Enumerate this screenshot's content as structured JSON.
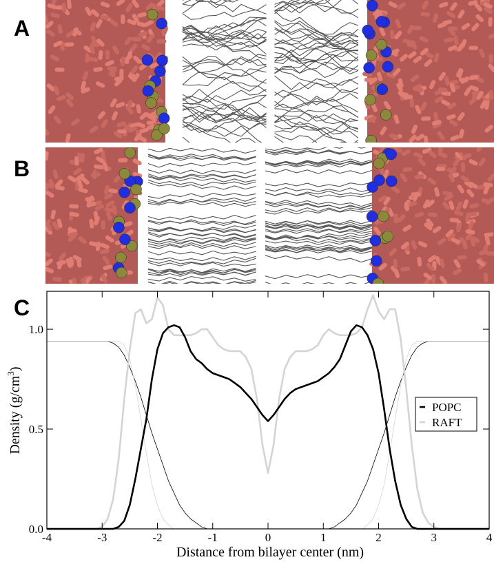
{
  "panels": {
    "a": "A",
    "b": "B"
  },
  "chart_data": {
    "type": "line",
    "panel_label": "C",
    "xlabel": "Distance from bilayer center (nm)",
    "ylabel": {
      "main": "Density (g/cm",
      "sup": "3",
      "end": ")"
    },
    "xlim": [
      -4,
      4
    ],
    "xticks": [
      -4,
      -3,
      -2,
      -1,
      0,
      1,
      2,
      3,
      4
    ],
    "ylim": [
      0,
      1.19
    ],
    "yticks": [
      {
        "value": 0,
        "label": "0.0"
      },
      {
        "value": 0.5,
        "label": "0.5"
      },
      {
        "value": 1,
        "label": "1.0"
      }
    ],
    "legend": "right",
    "x": [
      -4,
      -3.9,
      -3.8,
      -3.7,
      -3.6,
      -3.5,
      -3.4,
      -3.3,
      -3.2,
      -3.1,
      -3,
      -2.9,
      -2.8,
      -2.7,
      -2.6,
      -2.5,
      -2.4,
      -2.3,
      -2.2,
      -2.1,
      -2,
      -1.9,
      -1.8,
      -1.7,
      -1.6,
      -1.5,
      -1.4,
      -1.3,
      -1.2,
      -1.1,
      -1,
      -0.9,
      -0.8,
      -0.7,
      -0.6,
      -0.5,
      -0.4,
      -0.3,
      -0.2,
      -0.1,
      0,
      0.1,
      0.2,
      0.3,
      0.4,
      0.5,
      0.6,
      0.7,
      0.8,
      0.9,
      1,
      1.1,
      1.2,
      1.3,
      1.4,
      1.5,
      1.6,
      1.7,
      1.8,
      1.9,
      2,
      2.1,
      2.2,
      2.3,
      2.4,
      2.5,
      2.6,
      2.7,
      2.8,
      2.9,
      3,
      3.1,
      3.2,
      3.3,
      3.4,
      3.5,
      3.6,
      3.7,
      3.8,
      3.9,
      4
    ],
    "series": [
      {
        "name": "POPC",
        "color": "#000000",
        "line_width": 2.6,
        "values": [
          0,
          0,
          0,
          0,
          0,
          0,
          0,
          0,
          0,
          0,
          0,
          0,
          0,
          0.01,
          0.04,
          0.12,
          0.25,
          0.4,
          0.55,
          0.75,
          0.9,
          0.98,
          1.01,
          1.02,
          1.01,
          0.96,
          0.89,
          0.85,
          0.83,
          0.8,
          0.78,
          0.77,
          0.76,
          0.75,
          0.73,
          0.71,
          0.68,
          0.65,
          0.61,
          0.57,
          0.54,
          0.57,
          0.61,
          0.65,
          0.68,
          0.7,
          0.71,
          0.72,
          0.73,
          0.74,
          0.76,
          0.78,
          0.81,
          0.85,
          0.92,
          0.99,
          1.02,
          1.01,
          0.97,
          0.9,
          0.78,
          0.6,
          0.4,
          0.24,
          0.12,
          0.05,
          0.01,
          0,
          0,
          0,
          0,
          0,
          0,
          0,
          0,
          0,
          0,
          0,
          0,
          0,
          0
        ]
      },
      {
        "name": "RAFT",
        "color": "#d4d4d4",
        "line_width": 2.6,
        "values": [
          0,
          0,
          0,
          0,
          0,
          0,
          0,
          0,
          0,
          0,
          0.01,
          0.05,
          0.15,
          0.35,
          0.65,
          0.9,
          1.08,
          1.1,
          1.03,
          1.05,
          1.16,
          1.12,
          1.0,
          0.97,
          0.97,
          0.97,
          0.97,
          0.98,
          1.0,
          1.0,
          0.96,
          0.92,
          0.9,
          0.89,
          0.89,
          0.89,
          0.86,
          0.8,
          0.65,
          0.42,
          0.28,
          0.42,
          0.65,
          0.8,
          0.86,
          0.89,
          0.89,
          0.89,
          0.9,
          0.92,
          0.97,
          1.0,
          0.98,
          0.97,
          0.97,
          0.97,
          0.98,
          1.01,
          1.1,
          1.17,
          1.09,
          1.05,
          1.1,
          1.1,
          0.95,
          0.7,
          0.42,
          0.2,
          0.08,
          0.03,
          0.01,
          0,
          0,
          0,
          0,
          0,
          0,
          0,
          0,
          0,
          0
        ]
      },
      {
        "color": "#000000",
        "line_width": 0.8,
        "values": [
          0.94,
          0.94,
          0.94,
          0.94,
          0.94,
          0.94,
          0.94,
          0.94,
          0.94,
          0.94,
          0.94,
          0.94,
          0.93,
          0.91,
          0.87,
          0.81,
          0.74,
          0.66,
          0.57,
          0.48,
          0.4,
          0.32,
          0.24,
          0.18,
          0.12,
          0.08,
          0.05,
          0.03,
          0.01,
          0,
          0,
          0,
          0,
          0,
          0,
          0,
          0,
          0,
          0,
          0,
          0,
          0,
          0,
          0,
          0,
          0,
          0,
          0,
          0,
          0,
          0,
          0,
          0.01,
          0.03,
          0.05,
          0.08,
          0.12,
          0.18,
          0.24,
          0.32,
          0.4,
          0.48,
          0.57,
          0.66,
          0.74,
          0.81,
          0.87,
          0.91,
          0.93,
          0.94,
          0.94,
          0.94,
          0.94,
          0.94,
          0.94,
          0.94,
          0.94,
          0.94,
          0.94,
          0.94,
          0.94
        ]
      },
      {
        "color": "#d4d4d4",
        "line_width": 0.8,
        "values": [
          0.94,
          0.94,
          0.94,
          0.94,
          0.94,
          0.94,
          0.94,
          0.94,
          0.94,
          0.94,
          0.94,
          0.94,
          0.94,
          0.94,
          0.92,
          0.85,
          0.72,
          0.55,
          0.38,
          0.22,
          0.12,
          0.05,
          0.02,
          0,
          0,
          0,
          0,
          0,
          0,
          0,
          0,
          0,
          0,
          0,
          0,
          0,
          0,
          0,
          0,
          0,
          0,
          0,
          0,
          0,
          0,
          0,
          0,
          0,
          0,
          0,
          0,
          0,
          0,
          0,
          0,
          0,
          0,
          0,
          0.02,
          0.05,
          0.12,
          0.22,
          0.38,
          0.55,
          0.72,
          0.85,
          0.92,
          0.94,
          0.94,
          0.94,
          0.94,
          0.94,
          0.94,
          0.94,
          0.94,
          0.94,
          0.94,
          0.94,
          0.94,
          0.94,
          0.94
        ]
      }
    ]
  }
}
